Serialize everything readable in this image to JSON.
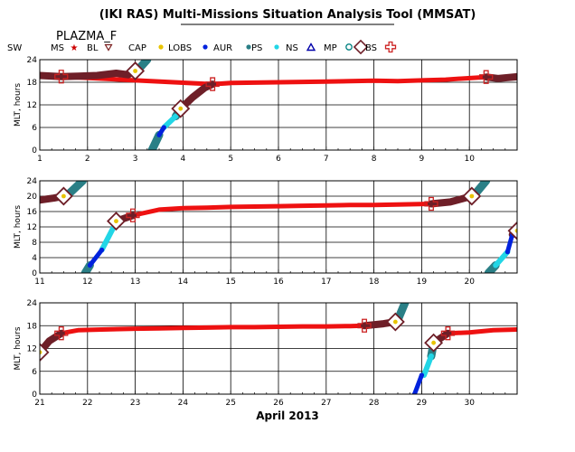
{
  "title": "(IKI RAS) Multi-Missions Situation Analysis Tool (MMSAT)",
  "satellite": "PLAZMA_F",
  "xlabel": "April 2013",
  "legend": [
    {
      "label": "SW",
      "symbol": "none",
      "color": "#000000"
    },
    {
      "label": "MS",
      "symbol": "star",
      "color": "#cc0000"
    },
    {
      "label": "BL",
      "symbol": "tri-down",
      "color": "#7a1f1f"
    },
    {
      "label": "CAP",
      "symbol": "dot",
      "color": "#e8c400"
    },
    {
      "label": "LOBS",
      "symbol": "dot",
      "color": "#0022dd"
    },
    {
      "label": "AUR",
      "symbol": "dot",
      "color": "#2a7f86"
    },
    {
      "label": "PS",
      "symbol": "dot",
      "color": "#22d6e6"
    },
    {
      "label": "NS",
      "symbol": "tri-up",
      "color": "#0000aa"
    },
    {
      "label": "MP",
      "symbol": "circle",
      "color": "#008080"
    },
    {
      "label": "BS",
      "symbol": "cross",
      "color": "#cc2222"
    }
  ],
  "colors": {
    "sw": "#ee1111",
    "bl": "#6e1f28",
    "aur": "#2a7f86",
    "lobs": "#0022dd",
    "ps": "#22d6e6",
    "cap": "#e8c400",
    "mp_box": "#6e1f28",
    "bs_box": "#cc2222"
  },
  "chart_data": [
    {
      "type": "scatter",
      "ylabel": "MLT, hours",
      "xlim": [
        1,
        11
      ],
      "ylim": [
        0,
        24
      ],
      "xticks": [
        1,
        2,
        3,
        4,
        5,
        6,
        7,
        8,
        9,
        10
      ],
      "yticks": [
        0,
        6,
        12,
        18,
        24
      ],
      "grid": true,
      "series": [
        {
          "region": "sw",
          "x": [
            1.45,
            4.62,
            5.0,
            5.5,
            6.0,
            6.5,
            7.0,
            7.5,
            8.0,
            8.5,
            9.0,
            9.5,
            10.35
          ],
          "y": [
            19.5,
            17.5,
            17.8,
            17.9,
            18.0,
            18.1,
            18.2,
            18.3,
            18.4,
            18.3,
            18.5,
            18.7,
            19.4
          ]
        },
        {
          "region": "bl",
          "x": [
            1.0,
            1.45,
            1.8,
            2.2,
            2.6,
            2.85,
            3.0
          ],
          "y": [
            19.8,
            19.5,
            19.6,
            19.8,
            20.4,
            20.0,
            21.0
          ]
        },
        {
          "region": "bl",
          "x": [
            3.95,
            4.2,
            4.45,
            4.62
          ],
          "y": [
            11.0,
            14.0,
            16.5,
            17.5
          ]
        },
        {
          "region": "bl",
          "x": [
            10.35,
            10.6,
            11.0
          ],
          "y": [
            19.4,
            19.0,
            19.5
          ]
        },
        {
          "region": "aur",
          "x": [
            3.05,
            3.25
          ],
          "y": [
            21.2,
            24.0
          ]
        },
        {
          "region": "aur",
          "x": [
            3.35,
            3.5
          ],
          "y": [
            0.0,
            4.0
          ]
        },
        {
          "region": "aur",
          "x": [
            3.85,
            3.95
          ],
          "y": [
            9.0,
            11.0
          ]
        },
        {
          "region": "lobs",
          "x": [
            3.5,
            3.6
          ],
          "y": [
            4.0,
            6.0
          ]
        },
        {
          "region": "ps",
          "x": [
            3.6,
            3.85
          ],
          "y": [
            6.0,
            9.0
          ]
        }
      ],
      "mp_crossings": [
        {
          "x": 3.0,
          "y": 21.0
        },
        {
          "x": 3.95,
          "y": 11.0
        }
      ],
      "bs_crossings": [
        {
          "x": 1.45,
          "y": 19.5
        },
        {
          "x": 4.62,
          "y": 17.5
        },
        {
          "x": 10.35,
          "y": 19.4
        }
      ]
    },
    {
      "type": "scatter",
      "ylabel": "MLT, hours",
      "xlim": [
        11,
        21
      ],
      "ylim": [
        0,
        24
      ],
      "xticks": [
        11,
        12,
        13,
        14,
        15,
        16,
        17,
        18,
        19,
        20
      ],
      "yticks": [
        0,
        4,
        8,
        12,
        16,
        20,
        24
      ],
      "grid": true,
      "series": [
        {
          "region": "sw",
          "x": [
            12.95,
            13.5,
            14.0,
            14.5,
            15.0,
            15.5,
            16.0,
            16.5,
            17.0,
            17.5,
            18.0,
            18.5,
            19.2
          ],
          "y": [
            15.0,
            16.5,
            16.9,
            17.0,
            17.2,
            17.3,
            17.4,
            17.5,
            17.6,
            17.7,
            17.7,
            17.8,
            18.0
          ]
        },
        {
          "region": "bl",
          "x": [
            11.0,
            11.3,
            11.5
          ],
          "y": [
            19.0,
            19.5,
            20.0
          ]
        },
        {
          "region": "bl",
          "x": [
            12.6,
            12.95
          ],
          "y": [
            13.5,
            15.0
          ]
        },
        {
          "region": "bl",
          "x": [
            19.2,
            19.6,
            20.05
          ],
          "y": [
            18.0,
            18.5,
            20.0
          ]
        },
        {
          "region": "bl",
          "x": [
            20.9,
            21.0
          ],
          "y": [
            10.0,
            11.0
          ]
        },
        {
          "region": "aur",
          "x": [
            11.6,
            11.9
          ],
          "y": [
            20.5,
            24.0
          ]
        },
        {
          "region": "aur",
          "x": [
            11.95,
            12.05
          ],
          "y": [
            0.0,
            2.0
          ]
        },
        {
          "region": "aur",
          "x": [
            20.15,
            20.35
          ],
          "y": [
            21.0,
            24.0
          ]
        },
        {
          "region": "aur",
          "x": [
            20.4,
            20.55
          ],
          "y": [
            0.0,
            2.0
          ]
        },
        {
          "region": "lobs",
          "x": [
            12.05,
            12.3
          ],
          "y": [
            2.0,
            6.0
          ]
        },
        {
          "region": "lobs",
          "x": [
            20.8,
            20.9
          ],
          "y": [
            5.5,
            10.0
          ]
        },
        {
          "region": "ps",
          "x": [
            12.3,
            12.55
          ],
          "y": [
            6.0,
            12.0
          ]
        },
        {
          "region": "ps",
          "x": [
            20.55,
            20.8
          ],
          "y": [
            2.0,
            5.5
          ]
        }
      ],
      "mp_crossings": [
        {
          "x": 11.5,
          "y": 20.0
        },
        {
          "x": 12.6,
          "y": 13.5
        },
        {
          "x": 20.05,
          "y": 20.0
        },
        {
          "x": 21.0,
          "y": 11.0
        }
      ],
      "bs_crossings": [
        {
          "x": 12.95,
          "y": 15.0
        },
        {
          "x": 19.2,
          "y": 18.0
        }
      ]
    },
    {
      "type": "scatter",
      "ylabel": "MLT, hours",
      "xlim": [
        21,
        31
      ],
      "ylim": [
        0,
        24
      ],
      "xticks": [
        21,
        22,
        23,
        24,
        25,
        26,
        27,
        28,
        29,
        30
      ],
      "yticks": [
        0,
        6,
        12,
        18,
        24
      ],
      "grid": true,
      "series": [
        {
          "region": "sw",
          "x": [
            21.45,
            21.8,
            22.3,
            23.0,
            23.5,
            24.0,
            24.5,
            25.0,
            25.5,
            26.0,
            26.5,
            27.0,
            27.5,
            27.8
          ],
          "y": [
            16.0,
            16.8,
            17.0,
            17.2,
            17.3,
            17.4,
            17.5,
            17.6,
            17.6,
            17.7,
            17.8,
            17.8,
            17.9,
            18.0
          ]
        },
        {
          "region": "sw",
          "x": [
            29.55,
            30.0,
            30.5,
            31.0
          ],
          "y": [
            16.0,
            16.2,
            16.8,
            17.0
          ]
        },
        {
          "region": "bl",
          "x": [
            21.0,
            21.2,
            21.45
          ],
          "y": [
            11.0,
            14.0,
            16.0
          ]
        },
        {
          "region": "bl",
          "x": [
            27.8,
            28.2,
            28.45
          ],
          "y": [
            18.0,
            18.5,
            19.0
          ]
        },
        {
          "region": "bl",
          "x": [
            29.25,
            29.55
          ],
          "y": [
            13.5,
            16.0
          ]
        },
        {
          "region": "aur",
          "x": [
            28.5,
            28.65
          ],
          "y": [
            19.5,
            24.0
          ]
        },
        {
          "region": "aur",
          "x": [
            29.2,
            29.25
          ],
          "y": [
            10.0,
            13.5
          ]
        },
        {
          "region": "lobs",
          "x": [
            28.85,
            29.0
          ],
          "y": [
            0.0,
            5.0
          ]
        },
        {
          "region": "ps",
          "x": [
            29.05,
            29.2
          ],
          "y": [
            5.0,
            10.0
          ]
        }
      ],
      "mp_crossings": [
        {
          "x": 21.0,
          "y": 11.0
        },
        {
          "x": 28.45,
          "y": 19.0
        },
        {
          "x": 29.25,
          "y": 13.5
        }
      ],
      "bs_crossings": [
        {
          "x": 21.45,
          "y": 16.0
        },
        {
          "x": 27.8,
          "y": 18.0
        },
        {
          "x": 29.55,
          "y": 16.0
        }
      ]
    }
  ]
}
